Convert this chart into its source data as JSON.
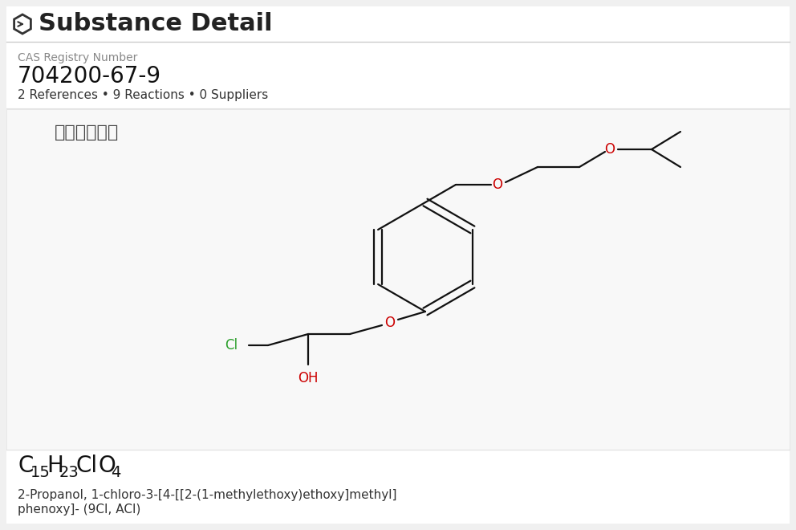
{
  "bg_color": "#f0f0f0",
  "white_bg": "#ffffff",
  "title_text": "Substance Detail",
  "title_fontsize": 22,
  "title_color": "#222222",
  "cas_label": "CAS Registry Number",
  "cas_label_color": "#888888",
  "cas_label_fontsize": 10,
  "cas_number": "704200-67-9",
  "cas_number_fontsize": 20,
  "cas_number_color": "#111111",
  "refs_text": "2 References • 9 Reactions • 0 Suppliers",
  "refs_fontsize": 11,
  "refs_color": "#333333",
  "watermark_text": "北京药素产品",
  "watermark_color": "#444444",
  "watermark_fontsize": 16,
  "formula_fontsize": 18,
  "formula_color": "#111111",
  "iupac_line1": "2-Propanol, 1-chloro-3-[4-[[2-(1-methylethoxy)ethoxy]methyl]",
  "iupac_line2": "phenoxy]- (9CI, ACI)",
  "iupac_fontsize": 11,
  "iupac_color": "#333333",
  "bond_color": "#111111",
  "cl_color": "#2ca02c",
  "o_color": "#cc0000",
  "oh_color": "#cc0000",
  "line_color": "#cccccc"
}
